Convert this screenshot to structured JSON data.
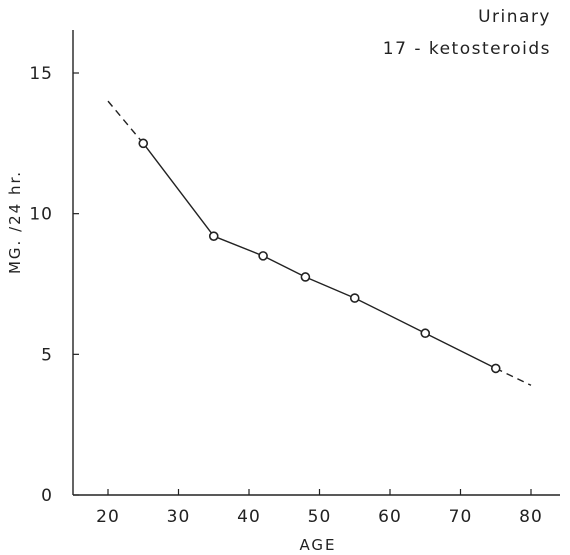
{
  "chart_data": {
    "type": "line",
    "title": "",
    "annotation_lines": [
      "Urinary",
      "17 - ketosteroids"
    ],
    "xlabel": "AGE",
    "ylabel": "MG. /24 hr.",
    "xlim": [
      12,
      84
    ],
    "ylim": [
      0,
      16.5
    ],
    "x_ticks": [
      20,
      30,
      40,
      50,
      60,
      70,
      80
    ],
    "x_tick_labels": [
      "20",
      "30",
      "40",
      "50",
      "60",
      "70",
      "80"
    ],
    "y_ticks": [
      0,
      5,
      10,
      15
    ],
    "y_tick_labels": [
      "0",
      "5",
      "10",
      "15"
    ],
    "grid": false,
    "legend": "none",
    "line_color": "#222222",
    "series": [
      {
        "x": [
          25,
          35,
          42,
          48,
          55,
          65,
          75
        ],
        "y": [
          12.5,
          9.2,
          8.5,
          7.75,
          7.0,
          5.75,
          4.5
        ]
      }
    ],
    "extrapolation": {
      "style": "dashed",
      "start": {
        "x": 20,
        "y": 14.0
      },
      "end": {
        "x": 80,
        "y": 3.9
      }
    }
  }
}
